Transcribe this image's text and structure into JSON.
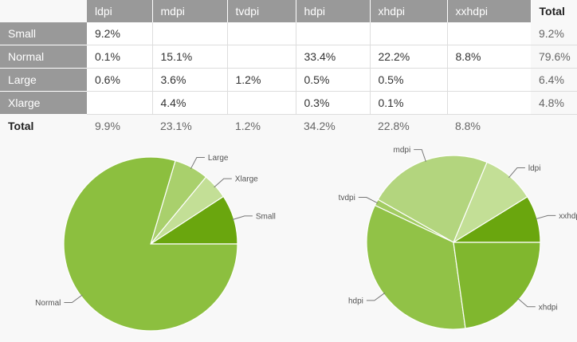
{
  "table": {
    "columns": [
      "ldpi",
      "mdpi",
      "tvdpi",
      "hdpi",
      "xhdpi",
      "xxhdpi"
    ],
    "total_label": "Total",
    "rows": [
      {
        "label": "Small",
        "cells": [
          "9.2%",
          "",
          "",
          "",
          "",
          ""
        ],
        "total": "9.2%"
      },
      {
        "label": "Normal",
        "cells": [
          "0.1%",
          "15.1%",
          "",
          "33.4%",
          "22.2%",
          "8.8%"
        ],
        "total": "79.6%"
      },
      {
        "label": "Large",
        "cells": [
          "0.6%",
          "3.6%",
          "1.2%",
          "0.5%",
          "0.5%",
          ""
        ],
        "total": "6.4%"
      },
      {
        "label": "Xlarge",
        "cells": [
          "",
          "4.4%",
          "",
          "0.3%",
          "0.1%",
          ""
        ],
        "total": "4.8%"
      }
    ],
    "footer": {
      "label": "Total",
      "cells": [
        "9.9%",
        "23.1%",
        "1.2%",
        "34.2%",
        "22.8%",
        "8.8%"
      ]
    }
  },
  "chart_data": [
    {
      "type": "pie",
      "slices": [
        {
          "label": "Small",
          "value": 9.2,
          "color": "#6aa60e"
        },
        {
          "label": "Xlarge",
          "value": 4.8,
          "color": "#c3df96"
        },
        {
          "label": "Large",
          "value": 6.4,
          "color": "#a9d06c"
        },
        {
          "label": "Normal",
          "value": 79.6,
          "color": "#8cbf3f"
        }
      ]
    },
    {
      "type": "pie",
      "slices": [
        {
          "label": "xxhdpi",
          "value": 8.8,
          "color": "#6aa60e"
        },
        {
          "label": "ldpi",
          "value": 9.9,
          "color": "#c3df96"
        },
        {
          "label": "mdpi",
          "value": 23.1,
          "color": "#b3d57e"
        },
        {
          "label": "tvdpi",
          "value": 1.2,
          "color": "#a2cc62"
        },
        {
          "label": "hdpi",
          "value": 34.2,
          "color": "#91c247"
        },
        {
          "label": "xhdpi",
          "value": 22.8,
          "color": "#80b72e"
        }
      ]
    }
  ]
}
